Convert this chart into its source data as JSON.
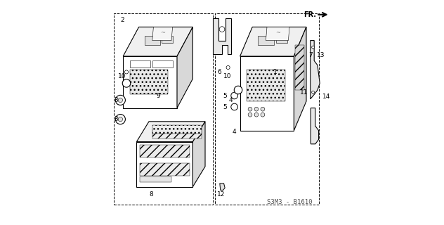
{
  "background_color": "#ffffff",
  "line_color": "#000000",
  "light_gray": "#cccccc",
  "mid_gray": "#aaaaaa",
  "dark_gray": "#555555",
  "diagram_ref": "S3M3 - B1610",
  "direction_label": "FR.",
  "figsize": [
    6.32,
    3.2
  ],
  "dpi": 100
}
